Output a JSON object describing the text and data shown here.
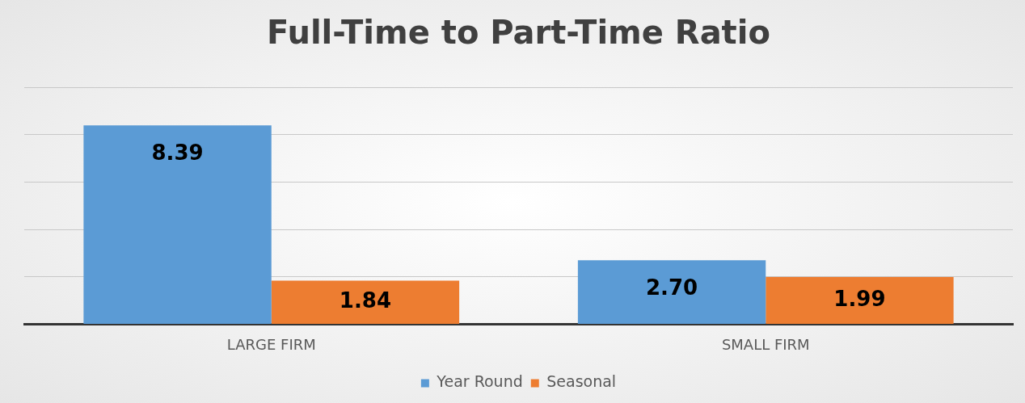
{
  "chart_data": {
    "type": "bar",
    "title": "Full-Time to Part-Time Ratio",
    "categories": [
      "LARGE FIRM",
      "SMALL FIRM"
    ],
    "series": [
      {
        "name": "Year Round",
        "color": "#5b9bd5",
        "values": [
          8.39,
          2.7
        ],
        "value_labels": [
          "8.39",
          "2.70"
        ]
      },
      {
        "name": "Seasonal",
        "color": "#ed7d31",
        "values": [
          1.84,
          1.99
        ],
        "value_labels": [
          "1.84",
          "1.99"
        ]
      }
    ],
    "ylim": [
      0,
      10
    ],
    "yticks": [
      {
        "value": 0,
        "label": null
      },
      {
        "value": 2,
        "label": null
      },
      {
        "value": 4,
        "label": null
      },
      {
        "value": 6,
        "label": null
      },
      {
        "value": 8,
        "label": null
      },
      {
        "value": 10,
        "label": null
      }
    ],
    "grid": "y",
    "legend": "bottom",
    "tick_labels": "x"
  }
}
